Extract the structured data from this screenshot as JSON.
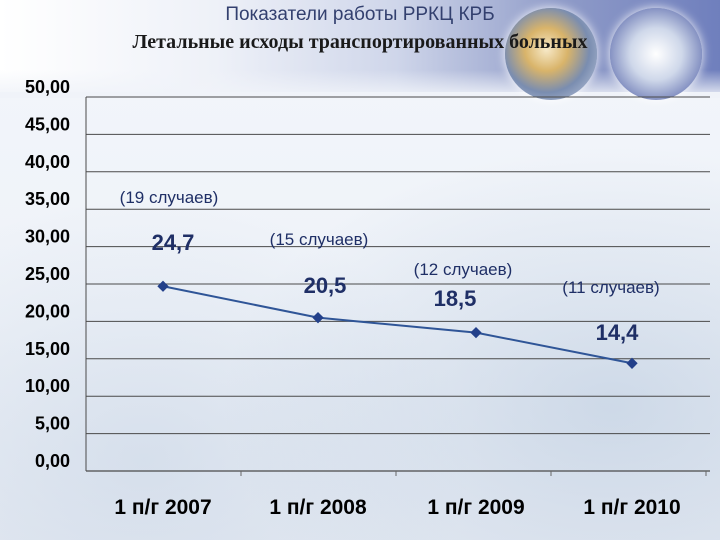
{
  "page_title": "Показатели работы РРКЦ КРБ",
  "chart_data": {
    "type": "line",
    "title": "Летальные исходы транспортированных больных",
    "xlabel": "",
    "ylabel": "",
    "categories": [
      "1 п/г 2007",
      "1 п/г 2008",
      "1 п/г 2009",
      "1 п/г 2010"
    ],
    "series": [
      {
        "values": [
          24.7,
          20.5,
          18.5,
          14.4
        ]
      }
    ],
    "data_labels": [
      "24,7",
      "20,5",
      "18,5",
      "14,4"
    ],
    "annotations": [
      "(19 случаев)",
      "(15 случаев)",
      "(12 случаев)",
      "(11 случаев)"
    ],
    "ylim": [
      0,
      50
    ],
    "yticks": [
      0,
      5,
      10,
      15,
      20,
      25,
      30,
      35,
      40,
      45,
      50
    ],
    "ytick_labels": [
      "0,00",
      "5,00",
      "10,00",
      "15,00",
      "20,00",
      "25,00",
      "30,00",
      "35,00",
      "40,00",
      "45,00",
      "50,00"
    ],
    "grid": "horizontal",
    "legend": "none",
    "colors": {
      "line": "#2f5597",
      "marker": "#23408a",
      "gridline": "#4a4a4a",
      "labels": "#1f2f66"
    }
  }
}
